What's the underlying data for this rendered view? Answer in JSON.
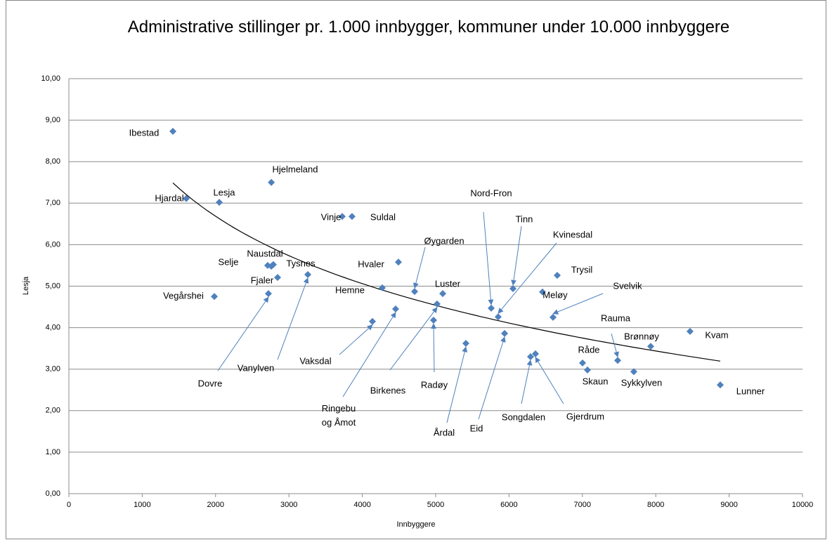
{
  "chart_data": {
    "type": "scatter",
    "title": "Administrative stillinger pr. 1.000 innbygger, kommuner under 10.000 innbyggere",
    "xlabel": "Innbyggere",
    "ylabel": "Lesja",
    "color": "#4f81bd",
    "trendline": "logarithmic",
    "grid": true,
    "xlim": [
      0,
      10000
    ],
    "ylim": [
      0,
      10
    ],
    "xticks": [
      0,
      1000,
      2000,
      3000,
      4000,
      5000,
      6000,
      7000,
      8000,
      9000,
      10000
    ],
    "yticks": [
      {
        "value": 0,
        "label": "0,00"
      },
      {
        "value": 1,
        "label": "1,00"
      },
      {
        "value": 2,
        "label": "2,00"
      },
      {
        "value": 3,
        "label": "3,00"
      },
      {
        "value": 4,
        "label": "4,00"
      },
      {
        "value": 5,
        "label": "5,00"
      },
      {
        "value": 6,
        "label": "6,00"
      },
      {
        "value": 7,
        "label": "7,00"
      },
      {
        "value": 8,
        "label": "8,00"
      },
      {
        "value": 9,
        "label": "9,00"
      },
      {
        "value": 10,
        "label": "10,00"
      }
    ],
    "point_labels": [
      "Ibestad",
      "Hjardal",
      "Lesja",
      "Hjelmeland",
      "Vinje",
      "Suldal",
      "Naustdal",
      "Selje",
      "Tysnes",
      "Fjaler",
      "Vegårshei",
      "Hvaler",
      "Hemne",
      "Øygarden",
      "Luster",
      "Dovre",
      "Vanylven",
      "Vaksdal",
      "Ringebu og Åmot",
      "Birkenes",
      "Radøy",
      "Årdal",
      "Eid",
      "Nord-Fron",
      "Tinn",
      "Kvinesdal",
      "Trysil",
      "Meløy",
      "Svelvik",
      "Rauma",
      "Brønnøy",
      "Kvam",
      "Råde",
      "Skaun",
      "Sykkylven",
      "Songdalen",
      "Gjerdrum",
      "Lunner"
    ],
    "x": [
      1418,
      1600,
      2050,
      2760,
      3726,
      3860,
      2787,
      2760,
      2845,
      2710,
      1983,
      4492,
      4272,
      4713,
      5096,
      2720,
      3257,
      4138,
      4454,
      5019,
      4971,
      5412,
      5939,
      5757,
      6054,
      5852,
      6657,
      6456,
      6600,
      7481,
      7931,
      8467,
      7002,
      7069,
      7701,
      6293,
      6360,
      8879
    ],
    "y": [
      8.73,
      7.11,
      7.02,
      7.5,
      6.68,
      6.68,
      5.52,
      5.48,
      5.21,
      5.5,
      4.75,
      5.58,
      4.96,
      4.87,
      4.82,
      4.82,
      5.28,
      4.15,
      4.45,
      4.57,
      4.18,
      3.62,
      3.86,
      4.47,
      4.94,
      4.26,
      5.26,
      4.86,
      4.25,
      3.21,
      3.55,
      3.91,
      3.15,
      2.98,
      2.94,
      3.3,
      3.37,
      2.62
    ]
  }
}
